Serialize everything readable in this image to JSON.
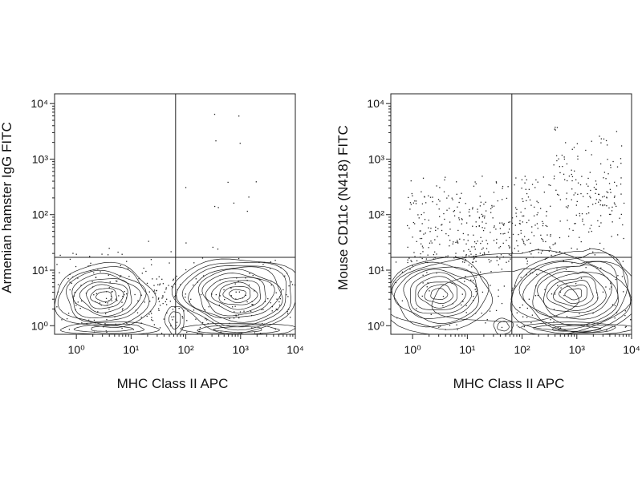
{
  "chart_data": [
    {
      "type": "contour",
      "xlabel": "MHC Class II APC",
      "ylabel": "Armenian hamster IgG FITC",
      "xscale": "log",
      "yscale": "log",
      "xlim": [
        0.4,
        10000
      ],
      "ylim": [
        0.7,
        15000
      ],
      "xticks": [
        {
          "value": 1,
          "label": "10⁰"
        },
        {
          "value": 10,
          "label": "10¹"
        },
        {
          "value": 100,
          "label": "10²"
        },
        {
          "value": 1000,
          "label": "10³"
        },
        {
          "value": 10000,
          "label": "10⁴"
        }
      ],
      "yticks": [
        {
          "value": 1,
          "label": "10⁰"
        },
        {
          "value": 10,
          "label": "10¹"
        },
        {
          "value": 100,
          "label": "10²"
        },
        {
          "value": 1000,
          "label": "10³"
        },
        {
          "value": 10000,
          "label": "10⁴"
        }
      ],
      "gate_x": 65,
      "gate_y": 17,
      "color": "#222222"
    },
    {
      "type": "contour",
      "xlabel": "MHC Class II APC",
      "ylabel": "Mouse CD11c (N418) FITC",
      "xscale": "log",
      "yscale": "log",
      "xlim": [
        0.4,
        10000
      ],
      "ylim": [
        0.7,
        15000
      ],
      "xticks": [
        {
          "value": 1,
          "label": "10⁰"
        },
        {
          "value": 10,
          "label": "10¹"
        },
        {
          "value": 100,
          "label": "10²"
        },
        {
          "value": 1000,
          "label": "10³"
        },
        {
          "value": 10000,
          "label": "10⁴"
        }
      ],
      "yticks": [
        {
          "value": 1,
          "label": "10⁰"
        },
        {
          "value": 10,
          "label": "10¹"
        },
        {
          "value": 100,
          "label": "10²"
        },
        {
          "value": 1000,
          "label": "10³"
        },
        {
          "value": 10000,
          "label": "10⁴"
        }
      ],
      "gate_x": 65,
      "gate_y": 17,
      "color": "#222222"
    }
  ]
}
